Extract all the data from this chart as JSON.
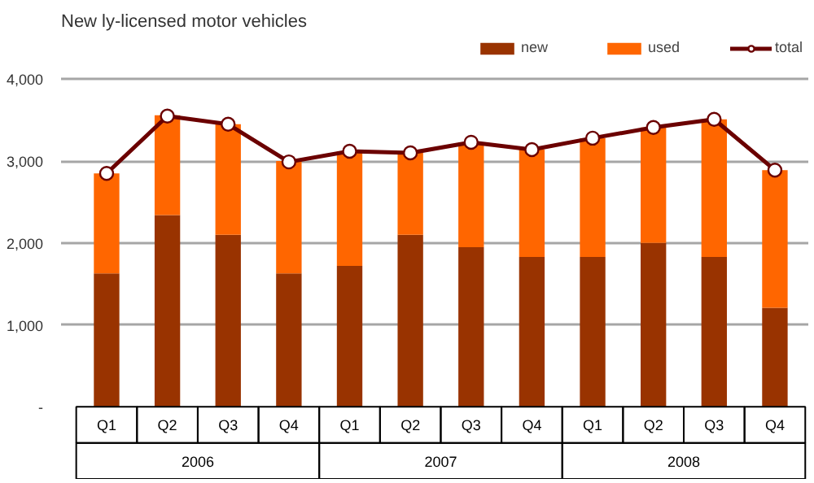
{
  "chart_data": {
    "type": "bar",
    "title": "New ly-licensed motor vehicles",
    "categories": [
      "Q1",
      "Q2",
      "Q3",
      "Q4",
      "Q1",
      "Q2",
      "Q3",
      "Q4",
      "Q1",
      "Q2",
      "Q3",
      "Q4"
    ],
    "annotations": [
      "2006",
      "2007",
      "2008"
    ],
    "stacked": true,
    "series": [
      {
        "name": "new",
        "color": "#993300",
        "values": [
          1630,
          2340,
          2100,
          1630,
          1720,
          2100,
          1950,
          1830,
          1830,
          2000,
          1830,
          1210
        ]
      },
      {
        "name": "used",
        "color": "#ff6600",
        "values": [
          1220,
          1220,
          1350,
          1370,
          1400,
          1000,
          1280,
          1310,
          1450,
          1410,
          1680,
          1680
        ]
      },
      {
        "name": "total",
        "type": "line",
        "color": "#6b0000",
        "marker": "circle",
        "values": [
          2850,
          3550,
          3450,
          2990,
          3120,
          3100,
          3230,
          3140,
          3280,
          3410,
          3510,
          2890
        ]
      }
    ],
    "ylim": [
      0,
      4000
    ],
    "yticks": [
      {
        "value": 0,
        "label": "-"
      },
      {
        "value": 1000,
        "label": "1,000"
      },
      {
        "value": 2000,
        "label": "2,000"
      },
      {
        "value": 3000,
        "label": "3,000"
      },
      {
        "value": 4000,
        "label": "4,000"
      }
    ],
    "grid": "y",
    "legend": "top right"
  }
}
